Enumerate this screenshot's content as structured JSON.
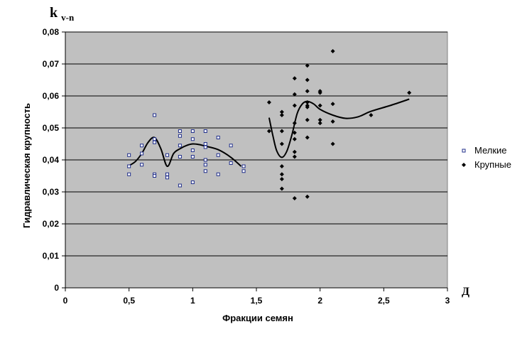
{
  "chart_data": {
    "type": "scatter",
    "xlabel": "Фракции семян",
    "ylabel": "Гидравлическая крупность",
    "xlim": [
      0,
      3
    ],
    "ylim": [
      0,
      0.08
    ],
    "x_ticks": [
      "0",
      "0,5",
      "1",
      "1,5",
      "2",
      "2,5",
      "3"
    ],
    "y_ticks": [
      "0",
      "0,01",
      "0,02",
      "0,03",
      "0,04",
      "0,05",
      "0,06",
      "0,07",
      "0,08"
    ],
    "y_axis_unit_label": {
      "main": "k",
      "subscript": "v-n"
    },
    "x_axis_unit_label": "Д",
    "grid": "horizontal",
    "plot_background": "#c0c0c0",
    "legend_position": "right",
    "series": [
      {
        "name": "Мелкие",
        "marker": "open-square",
        "color": "#1f2d8a",
        "points": [
          [
            0.5,
            0.0415
          ],
          [
            0.5,
            0.038
          ],
          [
            0.5,
            0.0355
          ],
          [
            0.6,
            0.0445
          ],
          [
            0.6,
            0.042
          ],
          [
            0.6,
            0.0385
          ],
          [
            0.7,
            0.054
          ],
          [
            0.7,
            0.0465
          ],
          [
            0.7,
            0.0455
          ],
          [
            0.7,
            0.0355
          ],
          [
            0.7,
            0.035
          ],
          [
            0.8,
            0.0415
          ],
          [
            0.8,
            0.0355
          ],
          [
            0.8,
            0.0345
          ],
          [
            0.9,
            0.049
          ],
          [
            0.9,
            0.0475
          ],
          [
            0.9,
            0.0445
          ],
          [
            0.9,
            0.041
          ],
          [
            0.9,
            0.032
          ],
          [
            1.0,
            0.049
          ],
          [
            1.0,
            0.0465
          ],
          [
            1.0,
            0.043
          ],
          [
            1.0,
            0.041
          ],
          [
            1.0,
            0.033
          ],
          [
            1.1,
            0.049
          ],
          [
            1.1,
            0.045
          ],
          [
            1.1,
            0.044
          ],
          [
            1.1,
            0.04
          ],
          [
            1.1,
            0.0385
          ],
          [
            1.1,
            0.0365
          ],
          [
            1.2,
            0.047
          ],
          [
            1.2,
            0.0415
          ],
          [
            1.2,
            0.0355
          ],
          [
            1.3,
            0.0445
          ],
          [
            1.3,
            0.039
          ],
          [
            1.4,
            0.038
          ],
          [
            1.4,
            0.0365
          ]
        ]
      },
      {
        "name": "Крупные",
        "marker": "filled-diamond",
        "color": "#000000",
        "points": [
          [
            1.6,
            0.058
          ],
          [
            1.6,
            0.049
          ],
          [
            1.7,
            0.055
          ],
          [
            1.7,
            0.054
          ],
          [
            1.7,
            0.049
          ],
          [
            1.7,
            0.045
          ],
          [
            1.7,
            0.038
          ],
          [
            1.7,
            0.0355
          ],
          [
            1.7,
            0.034
          ],
          [
            1.7,
            0.031
          ],
          [
            1.8,
            0.0655
          ],
          [
            1.8,
            0.0605
          ],
          [
            1.8,
            0.057
          ],
          [
            1.8,
            0.0515
          ],
          [
            1.8,
            0.0485
          ],
          [
            1.8,
            0.0465
          ],
          [
            1.8,
            0.0425
          ],
          [
            1.8,
            0.041
          ],
          [
            1.8,
            0.028
          ],
          [
            1.9,
            0.0695
          ],
          [
            1.9,
            0.065
          ],
          [
            1.9,
            0.0615
          ],
          [
            1.9,
            0.058
          ],
          [
            1.9,
            0.057
          ],
          [
            1.9,
            0.0565
          ],
          [
            1.9,
            0.0525
          ],
          [
            1.9,
            0.047
          ],
          [
            1.9,
            0.0285
          ],
          [
            2.0,
            0.0615
          ],
          [
            2.0,
            0.061
          ],
          [
            2.0,
            0.057
          ],
          [
            2.0,
            0.0525
          ],
          [
            2.0,
            0.0515
          ],
          [
            2.1,
            0.074
          ],
          [
            2.1,
            0.0575
          ],
          [
            2.1,
            0.052
          ],
          [
            2.1,
            0.045
          ],
          [
            2.4,
            0.054
          ],
          [
            2.7,
            0.061
          ]
        ]
      }
    ],
    "trendlines": [
      {
        "series": "Мелкие",
        "points": [
          [
            0.5,
            0.0382
          ],
          [
            0.55,
            0.0395
          ],
          [
            0.6,
            0.042
          ],
          [
            0.65,
            0.0455
          ],
          [
            0.7,
            0.047
          ],
          [
            0.75,
            0.0435
          ],
          [
            0.8,
            0.038
          ],
          [
            0.85,
            0.042
          ],
          [
            0.9,
            0.0435
          ],
          [
            0.95,
            0.0445
          ],
          [
            1.0,
            0.045
          ],
          [
            1.05,
            0.0448
          ],
          [
            1.1,
            0.0443
          ],
          [
            1.2,
            0.0432
          ],
          [
            1.3,
            0.0408
          ],
          [
            1.38,
            0.038
          ]
        ]
      },
      {
        "series": "Крупные",
        "points": [
          [
            1.6,
            0.0532
          ],
          [
            1.63,
            0.0475
          ],
          [
            1.66,
            0.0428
          ],
          [
            1.7,
            0.0408
          ],
          [
            1.74,
            0.0428
          ],
          [
            1.78,
            0.048
          ],
          [
            1.82,
            0.0545
          ],
          [
            1.86,
            0.0575
          ],
          [
            1.9,
            0.0583
          ],
          [
            1.95,
            0.0575
          ],
          [
            2.0,
            0.0558
          ],
          [
            2.1,
            0.054
          ],
          [
            2.2,
            0.053
          ],
          [
            2.3,
            0.0535
          ],
          [
            2.4,
            0.0552
          ],
          [
            2.55,
            0.057
          ],
          [
            2.7,
            0.059
          ]
        ]
      }
    ]
  }
}
